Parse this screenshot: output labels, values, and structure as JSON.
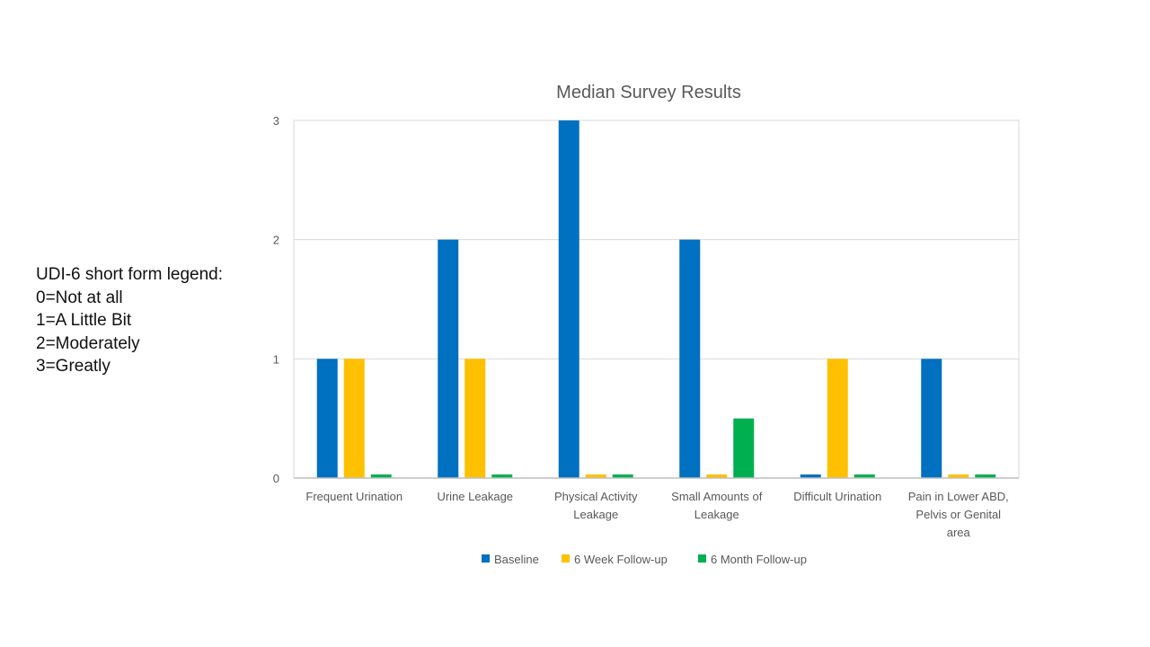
{
  "side_legend": {
    "title": "UDI-6 short form legend:",
    "items": [
      "0=Not at all",
      "1=A Little Bit",
      "2=Moderately",
      "3=Greatly"
    ]
  },
  "chart_data": {
    "type": "bar",
    "title": "Median Survey Results",
    "categories": [
      [
        "Frequent Urination"
      ],
      [
        "Urine Leakage"
      ],
      [
        "Physical Activity",
        "Leakage"
      ],
      [
        "Small Amounts of",
        "Leakage"
      ],
      [
        "Difficult Urination"
      ],
      [
        "Pain in Lower ABD,",
        "Pelvis or Genital",
        "area"
      ]
    ],
    "series": [
      {
        "name": "Baseline",
        "color": "#0070C0",
        "values": [
          1,
          2,
          3,
          2,
          0,
          1
        ]
      },
      {
        "name": "6 Week Follow-up",
        "color": "#FFC000",
        "values": [
          1,
          1,
          0,
          0,
          1,
          0
        ]
      },
      {
        "name": "6 Month Follow-up",
        "color": "#00B050",
        "values": [
          0,
          0,
          0,
          0.5,
          0,
          0
        ]
      }
    ],
    "ylim": [
      0,
      3
    ],
    "yticks": [
      0,
      1,
      2,
      3
    ],
    "grid": true,
    "legend_position": "bottom"
  }
}
